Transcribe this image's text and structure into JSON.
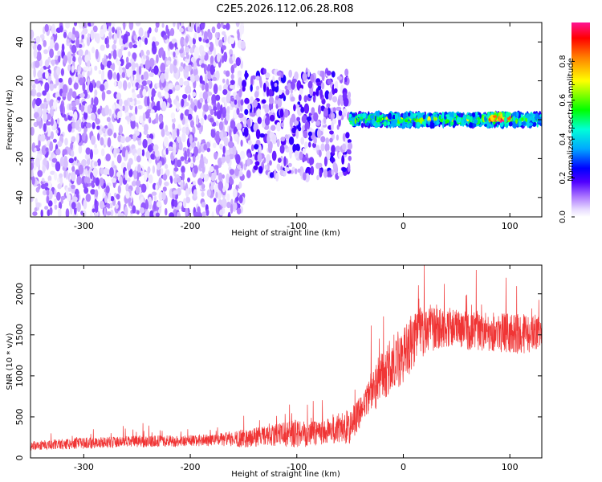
{
  "title": "C2E5.2026.112.06.28.R08",
  "colors": {
    "snr_line": "#f03535",
    "colormap": [
      "#ffffff",
      "#d9c6ff",
      "#8a2be2",
      "#5000ff",
      "#0000ff",
      "#00b4ff",
      "#00ffd8",
      "#00ff00",
      "#ffff00",
      "#ff8000",
      "#ff0000",
      "#ff1493"
    ]
  },
  "chart_data": [
    {
      "type": "heatmap",
      "xlabel": "Height of straight line (km)",
      "ylabel": "Frequency (Hz)",
      "xlim": [
        -350,
        130
      ],
      "ylim": [
        -50,
        50
      ],
      "xticks": [
        -300,
        -200,
        -100,
        0,
        100
      ],
      "yticks": [
        -40,
        -20,
        0,
        20,
        40
      ],
      "colorbar": {
        "label": "Normalized spectral amplitude",
        "range": [
          0.0,
          1.0
        ],
        "ticks": [
          0.0,
          0.2,
          0.4,
          0.6,
          0.8
        ]
      },
      "description_regions": [
        {
          "x_range": [
            -350,
            -150
          ],
          "freq_range": [
            -50,
            50
          ],
          "amplitude": 0.1
        },
        {
          "x_range": [
            -150,
            -50
          ],
          "freq_range": [
            -30,
            25
          ],
          "amplitude": 0.15
        },
        {
          "x_range": [
            -50,
            130
          ],
          "freq_range": [
            -3,
            3
          ],
          "amplitude": 0.6
        },
        {
          "x_range": [
            80,
            100
          ],
          "freq_range": [
            0,
            3
          ],
          "amplitude": 0.95
        }
      ]
    },
    {
      "type": "line",
      "xlabel": "Height of straight line (km)",
      "ylabel": "SNR (10 * v/v)",
      "xlim": [
        -350,
        130
      ],
      "ylim": [
        0,
        2350
      ],
      "xticks": [
        -300,
        -200,
        -100,
        0,
        100
      ],
      "yticks": [
        0,
        500,
        1000,
        1500,
        2000
      ],
      "series": [
        {
          "x": [
            -350,
            -300,
            -250,
            -200,
            -175,
            -150,
            -125,
            -100,
            -75,
            -50,
            -40,
            -30,
            -20,
            -10,
            0,
            10,
            20,
            30,
            40,
            60,
            80,
            100,
            120,
            130
          ],
          "mean": [
            150,
            180,
            200,
            210,
            220,
            240,
            270,
            300,
            330,
            380,
            550,
            800,
            1000,
            1150,
            1250,
            1450,
            1550,
            1600,
            1600,
            1550,
            1550,
            1520,
            1500,
            1550
          ],
          "spread": [
            80,
            100,
            100,
            100,
            110,
            160,
            180,
            250,
            250,
            300,
            300,
            400,
            450,
            500,
            500,
            500,
            450,
            400,
            350,
            350,
            350,
            350,
            350,
            300
          ]
        }
      ]
    }
  ]
}
